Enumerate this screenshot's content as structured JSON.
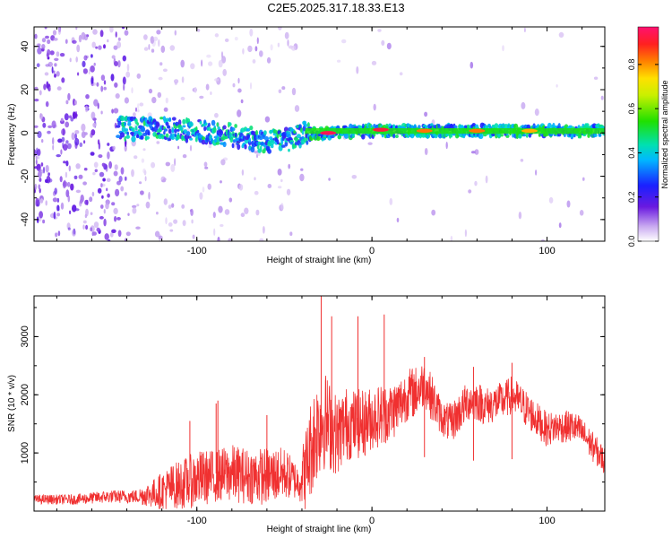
{
  "title": "C2E5.2025.317.18.33.E13",
  "chart_data": [
    {
      "type": "heatmap",
      "xlabel": "Height of straight line (km)",
      "ylabel": "Frequency (Hz)",
      "xlim": [
        -193,
        133
      ],
      "ylim": [
        -50,
        49
      ],
      "xticks": [
        -100,
        0,
        100
      ],
      "xtick_labels": [
        "-100",
        "0",
        "100"
      ],
      "yticks": [
        -40,
        -20,
        0,
        20,
        40
      ],
      "ytick_labels": [
        "-40",
        "-20",
        "0",
        "20",
        "40"
      ],
      "colorbar": {
        "label": "Normalized spectral amplitude",
        "range": [
          0,
          0.97
        ],
        "ticks": [
          0.0,
          0.2,
          0.4,
          0.6,
          0.8
        ],
        "tick_labels": [
          "0.0",
          "0.2",
          "0.4",
          "0.6",
          "0.8"
        ]
      },
      "ridge": [
        {
          "x": -140,
          "y": 2
        },
        {
          "x": -120,
          "y": 2
        },
        {
          "x": -100,
          "y": 1
        },
        {
          "x": -80,
          "y": -1
        },
        {
          "x": -60,
          "y": -4
        },
        {
          "x": -45,
          "y": -3
        },
        {
          "x": -38,
          "y": 0
        },
        {
          "x": -30,
          "y": 0
        },
        {
          "x": -20,
          "y": 0
        },
        {
          "x": 0,
          "y": 1
        },
        {
          "x": 50,
          "y": 1
        },
        {
          "x": 100,
          "y": 1
        },
        {
          "x": 133,
          "y": 1
        }
      ],
      "peaks": [
        {
          "x": -25,
          "y": 0,
          "amp": 0.97
        },
        {
          "x": 5,
          "y": 1.5,
          "amp": 0.95
        },
        {
          "x": 30,
          "y": 1,
          "amp": 0.85
        },
        {
          "x": 60,
          "y": 1,
          "amp": 0.85
        },
        {
          "x": 90,
          "y": 1,
          "amp": 0.8
        }
      ]
    },
    {
      "type": "line",
      "xlabel": "Height of straight line (km)",
      "ylabel": "SNR (10 * v/v)",
      "xlim": [
        -193,
        133
      ],
      "ylim": [
        0,
        3700
      ],
      "xticks": [
        -100,
        0,
        100
      ],
      "xtick_labels": [
        "-100",
        "0",
        "100"
      ],
      "yticks": [
        1000,
        2000,
        3000
      ],
      "ytick_labels": [
        "1000",
        "2000",
        "3000"
      ],
      "color": "#f03030",
      "series": [
        {
          "name": "SNR",
          "x": [
            -193,
            -170,
            -150,
            -135,
            -125,
            -115,
            -105,
            -100,
            -90,
            -80,
            -70,
            -60,
            -50,
            -42,
            -38,
            -34,
            -30,
            -28,
            -25,
            -20,
            -15,
            -10,
            -5,
            0,
            5,
            10,
            15,
            20,
            25,
            30,
            35,
            40,
            45,
            50,
            55,
            60,
            65,
            70,
            75,
            80,
            85,
            90,
            95,
            100,
            105,
            110,
            115,
            120,
            125,
            133
          ],
          "y": [
            200,
            200,
            250,
            250,
            300,
            400,
            500,
            550,
            600,
            650,
            600,
            600,
            650,
            500,
            700,
            1200,
            1500,
            1600,
            1500,
            1300,
            1500,
            1500,
            1500,
            1600,
            1650,
            1700,
            1800,
            2000,
            2050,
            2200,
            1900,
            1600,
            1500,
            1700,
            1900,
            1900,
            1800,
            1850,
            1900,
            2000,
            1850,
            1700,
            1550,
            1400,
            1450,
            1450,
            1450,
            1350,
            1150,
            850
          ],
          "spread": [
            80,
            90,
            110,
            120,
            250,
            400,
            450,
            500,
            450,
            500,
            480,
            500,
            450,
            300,
            700,
            900,
            900,
            900,
            800,
            700,
            650,
            600,
            600,
            550,
            550,
            500,
            500,
            450,
            450,
            400,
            400,
            300,
            350,
            350,
            350,
            350,
            330,
            330,
            330,
            330,
            330,
            320,
            300,
            300,
            280,
            280,
            280,
            260,
            260,
            250
          ]
        }
      ],
      "spikes": [
        {
          "x": -29,
          "y": 3700
        },
        {
          "x": -23,
          "y": 3350
        },
        {
          "x": -8,
          "y": 3350
        },
        {
          "x": 7,
          "y": 3380
        },
        {
          "x": -104,
          "y": 1550
        },
        {
          "x": -89,
          "y": 1850
        },
        {
          "x": -88,
          "y": 1900
        },
        {
          "x": -60,
          "y": 1650
        },
        {
          "x": 30,
          "y": 2650
        },
        {
          "x": 58,
          "y": 2480
        },
        {
          "x": 80,
          "y": 2550
        }
      ]
    }
  ]
}
